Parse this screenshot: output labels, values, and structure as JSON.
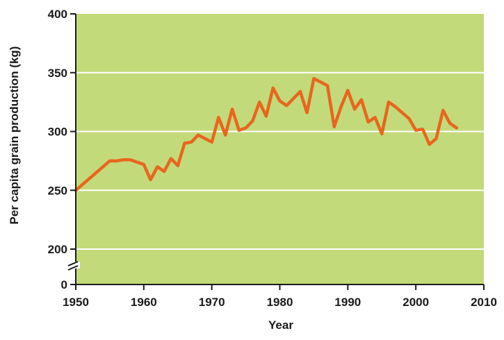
{
  "chart_data": {
    "type": "line",
    "title": "",
    "xlabel": "Year",
    "ylabel": "Per capita grain production (kg)",
    "xlim": [
      1950,
      2010
    ],
    "ylim": [
      200,
      400
    ],
    "axis_break": true,
    "x_ticks": [
      1950,
      1960,
      1970,
      1980,
      1990,
      2000,
      2010
    ],
    "y_ticks": [
      200,
      250,
      300,
      350,
      400
    ],
    "y_zero_label": "0",
    "grid": "horizontal",
    "background_color": "#c3da7a",
    "line_color": "#e8661e",
    "series": [
      {
        "x": [
          1950,
          1955,
          1956,
          1957,
          1958,
          1959,
          1960,
          1961,
          1962,
          1963,
          1964,
          1965,
          1966,
          1967,
          1968,
          1969,
          1970,
          1971,
          1972,
          1973,
          1974,
          1975,
          1976,
          1977,
          1978,
          1979,
          1980,
          1981,
          1982,
          1983,
          1984,
          1985,
          1986,
          1987,
          1988,
          1989,
          1990,
          1991,
          1992,
          1993,
          1994,
          1995,
          1996,
          1997,
          1998,
          1999,
          2000,
          2001,
          2002,
          2003,
          2004,
          2005,
          2006
        ],
        "y": [
          250,
          275,
          275,
          276,
          276,
          274,
          272,
          259,
          270,
          266,
          277,
          271,
          290,
          291,
          297,
          294,
          291,
          312,
          297,
          319,
          301,
          303,
          309,
          325,
          313,
          337,
          326,
          322,
          328,
          334,
          316,
          345,
          342,
          339,
          304,
          321,
          335,
          319,
          327,
          308,
          312,
          298,
          325,
          321,
          316,
          311,
          301,
          302,
          289,
          294,
          318,
          307,
          303
        ]
      }
    ]
  }
}
